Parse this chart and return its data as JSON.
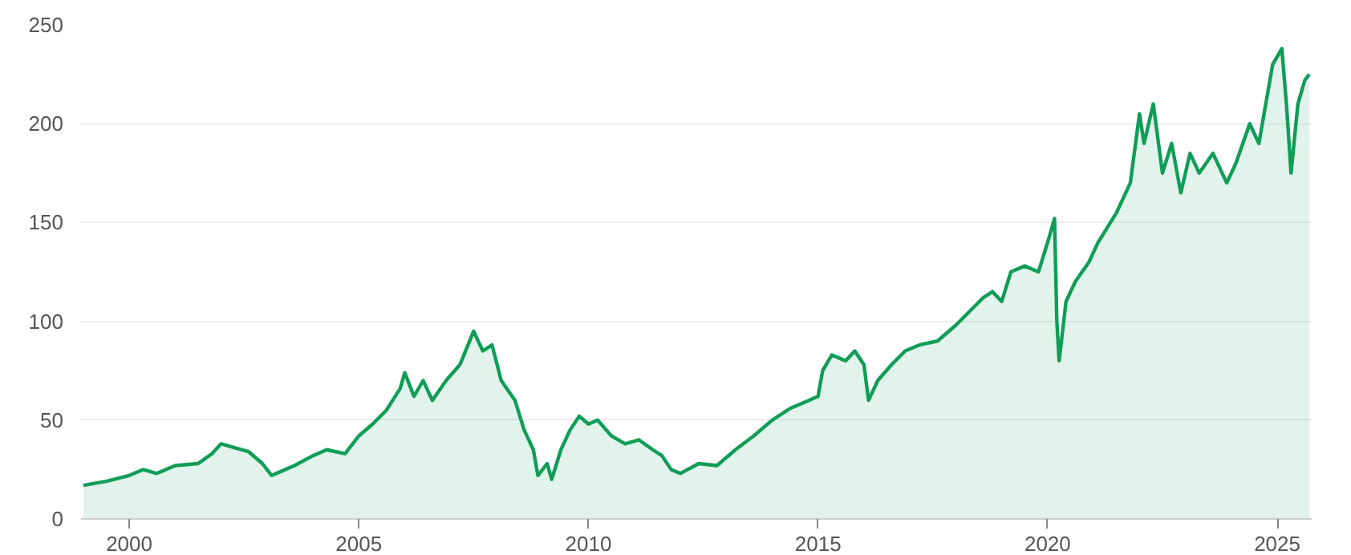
{
  "chart_data": {
    "type": "area",
    "grid": "y",
    "xlim": [
      1998.95,
      2025.75
    ],
    "ylim": [
      0,
      250
    ],
    "xticks": [
      2000,
      2005,
      2010,
      2015,
      2020,
      2025
    ],
    "yticks": [
      0,
      50,
      100,
      150,
      200,
      250
    ],
    "series": [
      {
        "color": "#0f9d58",
        "x": [
          1999.0,
          1999.5,
          2000.0,
          2000.3,
          2000.6,
          2001.0,
          2001.5,
          2001.8,
          2002.0,
          2002.3,
          2002.6,
          2002.9,
          2003.1,
          2003.3,
          2003.6,
          2004.0,
          2004.3,
          2004.7,
          2005.0,
          2005.3,
          2005.6,
          2005.9,
          2006.0,
          2006.2,
          2006.4,
          2006.6,
          2006.9,
          2007.2,
          2007.5,
          2007.7,
          2007.9,
          2008.1,
          2008.4,
          2008.6,
          2008.8,
          2008.9,
          2009.1,
          2009.2,
          2009.4,
          2009.6,
          2009.8,
          2010.0,
          2010.2,
          2010.5,
          2010.8,
          2011.1,
          2011.4,
          2011.6,
          2011.8,
          2012.0,
          2012.4,
          2012.8,
          2013.2,
          2013.6,
          2014.0,
          2014.4,
          2014.8,
          2015.0,
          2015.1,
          2015.3,
          2015.6,
          2015.8,
          2016.0,
          2016.1,
          2016.3,
          2016.6,
          2016.9,
          2017.2,
          2017.6,
          2018.0,
          2018.3,
          2018.6,
          2018.8,
          2019.0,
          2019.2,
          2019.5,
          2019.8,
          2020.0,
          2020.15,
          2020.2,
          2020.25,
          2020.4,
          2020.6,
          2020.9,
          2021.1,
          2021.5,
          2021.8,
          2022.0,
          2022.1,
          2022.3,
          2022.5,
          2022.7,
          2022.9,
          2023.1,
          2023.3,
          2023.6,
          2023.9,
          2024.1,
          2024.4,
          2024.6,
          2024.9,
          2025.1,
          2025.2,
          2025.3,
          2025.45,
          2025.6,
          2025.7
        ],
        "values": [
          17,
          19,
          22,
          25,
          23,
          27,
          28,
          33,
          38,
          36,
          34,
          28,
          22,
          24,
          27,
          32,
          35,
          33,
          42,
          48,
          55,
          66,
          74,
          62,
          70,
          60,
          70,
          78,
          95,
          85,
          88,
          70,
          60,
          45,
          35,
          22,
          28,
          20,
          35,
          45,
          52,
          48,
          50,
          42,
          38,
          40,
          35,
          32,
          25,
          23,
          28,
          27,
          35,
          42,
          50,
          56,
          60,
          62,
          75,
          83,
          80,
          85,
          78,
          60,
          70,
          78,
          85,
          88,
          90,
          98,
          105,
          112,
          115,
          110,
          125,
          128,
          125,
          140,
          152,
          100,
          80,
          110,
          120,
          130,
          140,
          155,
          170,
          205,
          190,
          210,
          175,
          190,
          165,
          185,
          175,
          185,
          170,
          180,
          200,
          190,
          230,
          238,
          210,
          175,
          210,
          222,
          225
        ]
      }
    ]
  }
}
